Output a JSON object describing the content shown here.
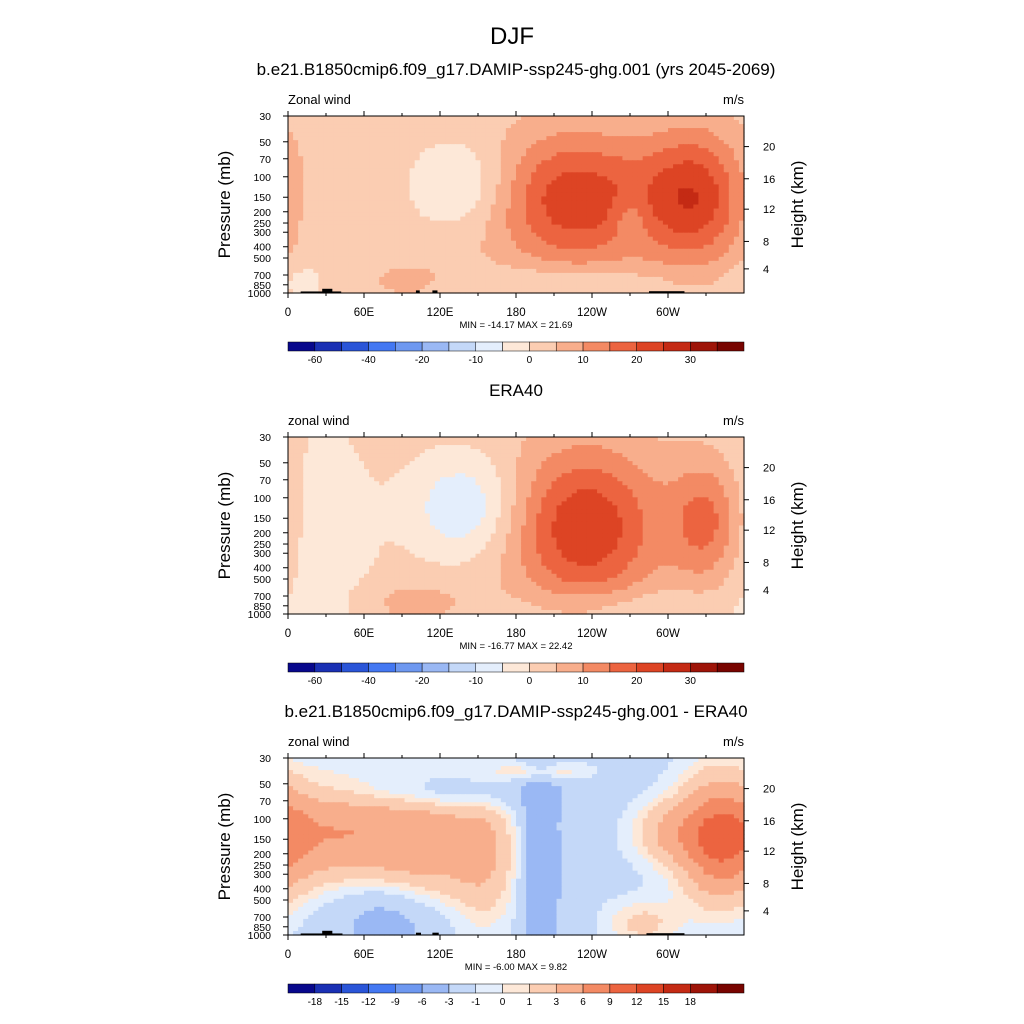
{
  "figure": {
    "title": "DJF",
    "colors": {
      "abs_scale": [
        "#08088c",
        "#1a30b4",
        "#2a55d8",
        "#4478f2",
        "#6e98f0",
        "#9ab8f4",
        "#c4d8f8",
        "#e4eefc",
        "#fde8d8",
        "#fbcdb2",
        "#f8ae8c",
        "#f38a64",
        "#ec6440",
        "#dd4424",
        "#c42a14",
        "#9e1408",
        "#780400"
      ],
      "diff_scale": [
        "#08088c",
        "#1a30b4",
        "#2a55d8",
        "#4478f2",
        "#6e98f0",
        "#9ab8f4",
        "#c4d8f8",
        "#e4eefc",
        "#fde8d8",
        "#fbcdb2",
        "#f8ae8c",
        "#f38a64",
        "#ec6440",
        "#dd4424",
        "#c42a14",
        "#9e1408",
        "#780400"
      ],
      "topography": "#000000"
    }
  },
  "chart_data": [
    {
      "type": "heatmap",
      "title": "b.e21.B1850cmip6.f09_g17.DAMIP-ssp245-ghg.001 (yrs 2045-2069)",
      "left_label": "Zonal wind",
      "right_label": "m/s",
      "ylabel": "Pressure (mb)",
      "ylabel_right": "Height (km)",
      "x_ticks": [
        "0",
        "60E",
        "120E",
        "180",
        "120W",
        "60W"
      ],
      "y_ticks": [
        "30",
        "50",
        "70",
        "100",
        "150",
        "200",
        "250",
        "300",
        "400",
        "500",
        "700",
        "850",
        "1000"
      ],
      "y_ticks_right": [
        "20",
        "16",
        "12",
        "8",
        "4"
      ],
      "stats": "MIN = -14.17  MAX =  21.69",
      "colorbar_labels": [
        "-60",
        "-40",
        "-20",
        "-10",
        "0",
        "10",
        "20",
        "30"
      ],
      "levels": [
        -70,
        -60,
        -50,
        -40,
        -30,
        -20,
        -15,
        -10,
        -5,
        0,
        5,
        10,
        15,
        20,
        25,
        30,
        35
      ],
      "xlim": [
        0,
        360
      ],
      "ylim": [
        1000,
        30
      ],
      "field": {
        "background": 2,
        "features": [
          {
            "lon": 140,
            "p": 120,
            "amp": -9,
            "w": 28,
            "h": 0.22
          },
          {
            "lon": 228,
            "p": 160,
            "amp": 21.7,
            "w": 48,
            "h": 0.34
          },
          {
            "lon": 322,
            "p": 150,
            "amp": 20,
            "w": 28,
            "h": 0.34
          },
          {
            "lon": 25,
            "p": 200,
            "amp": -3,
            "w": 12,
            "h": 0.25
          },
          {
            "lon": 100,
            "p": 800,
            "amp": 5,
            "w": 35,
            "h": 0.12
          },
          {
            "lon": 210,
            "p": 850,
            "amp": -5,
            "w": 70,
            "h": 0.1
          },
          {
            "lon": 10,
            "p": 800,
            "amp": -4,
            "w": 14,
            "h": 0.1
          },
          {
            "lon": 270,
            "p": 230,
            "amp": -6,
            "w": 10,
            "h": 0.12
          }
        ]
      },
      "topography": [
        {
          "lon0": 10,
          "lon1": 42,
          "top": 970
        },
        {
          "lon0": 27,
          "lon1": 35,
          "top": 920
        },
        {
          "lon0": 101,
          "lon1": 104,
          "top": 950
        },
        {
          "lon0": 114,
          "lon1": 118,
          "top": 950
        },
        {
          "lon0": 285,
          "lon1": 313,
          "top": 965
        }
      ]
    },
    {
      "type": "heatmap",
      "title": "ERA40",
      "left_label": "zonal wind",
      "right_label": "m/s",
      "ylabel": "Pressure (mb)",
      "ylabel_right": "Height (km)",
      "x_ticks": [
        "0",
        "60E",
        "120E",
        "180",
        "120W",
        "60W"
      ],
      "y_ticks": [
        "30",
        "50",
        "70",
        "100",
        "150",
        "200",
        "250",
        "300",
        "400",
        "500",
        "700",
        "850",
        "1000"
      ],
      "y_ticks_right": [
        "20",
        "16",
        "12",
        "8",
        "4"
      ],
      "stats": "MIN = -16.77  MAX =  22.42",
      "colorbar_labels": [
        "-60",
        "-40",
        "-20",
        "-10",
        "0",
        "10",
        "20",
        "30"
      ],
      "levels": [
        -70,
        -60,
        -50,
        -40,
        -30,
        -20,
        -15,
        -10,
        -5,
        0,
        5,
        10,
        15,
        20,
        25,
        30,
        35
      ],
      "xlim": [
        0,
        360
      ],
      "ylim": [
        1000,
        30
      ],
      "field": {
        "background": 2,
        "features": [
          {
            "lon": 140,
            "p": 120,
            "amp": -12,
            "w": 30,
            "h": 0.25
          },
          {
            "lon": 235,
            "p": 180,
            "amp": 22.4,
            "w": 42,
            "h": 0.4
          },
          {
            "lon": 330,
            "p": 160,
            "amp": 14,
            "w": 20,
            "h": 0.3
          },
          {
            "lon": 30,
            "p": 250,
            "amp": -5,
            "w": 28,
            "h": 0.6
          },
          {
            "lon": 100,
            "p": 800,
            "amp": 5,
            "w": 35,
            "h": 0.12
          },
          {
            "lon": 260,
            "p": 900,
            "amp": -5,
            "w": 60,
            "h": 0.1
          }
        ]
      },
      "topography": []
    },
    {
      "type": "heatmap",
      "title": "b.e21.B1850cmip6.f09_g17.DAMIP-ssp245-ghg.001 - ERA40",
      "left_label": "zonal wind",
      "right_label": "m/s",
      "ylabel": "Pressure (mb)",
      "ylabel_right": "Height (km)",
      "x_ticks": [
        "0",
        "60E",
        "120E",
        "180",
        "120W",
        "60W"
      ],
      "y_ticks": [
        "30",
        "50",
        "70",
        "100",
        "150",
        "200",
        "250",
        "300",
        "400",
        "500",
        "700",
        "850",
        "1000"
      ],
      "y_ticks_right": [
        "20",
        "16",
        "12",
        "8",
        "4"
      ],
      "stats": "MIN =  -6.00  MAX =   9.82",
      "colorbar_labels": [
        "-18",
        "-15",
        "-12",
        "-9",
        "-6",
        "-3",
        "-1",
        "0",
        "1",
        "3",
        "6",
        "9",
        "12",
        "15",
        "18"
      ],
      "levels": [
        -21,
        -18,
        -15,
        -12,
        -9,
        -6,
        -3,
        -1,
        0,
        1,
        3,
        6,
        9,
        12,
        15,
        18,
        21
      ],
      "xlim": [
        0,
        360
      ],
      "ylim": [
        1000,
        30
      ],
      "field": {
        "background": -1.5,
        "features": [
          {
            "lon": 40,
            "p": 130,
            "amp": 7,
            "w": 40,
            "h": 0.25
          },
          {
            "lon": 110,
            "p": 160,
            "amp": 5.5,
            "w": 30,
            "h": 0.3
          },
          {
            "lon": 155,
            "p": 200,
            "amp": 4,
            "w": 18,
            "h": 0.35
          },
          {
            "lon": 340,
            "p": 150,
            "amp": 9.8,
            "w": 22,
            "h": 0.3
          },
          {
            "lon": 300,
            "p": 130,
            "amp": 4,
            "w": 20,
            "h": 0.15
          },
          {
            "lon": 200,
            "p": 250,
            "amp": -4.5,
            "w": 10,
            "h": 0.5
          },
          {
            "lon": 80,
            "p": 700,
            "amp": -3,
            "w": 30,
            "h": 0.2
          },
          {
            "lon": 200,
            "p": 40,
            "amp": 3,
            "w": 25,
            "h": 0.05
          },
          {
            "lon": 120,
            "p": 60,
            "amp": -3,
            "w": 60,
            "h": 0.1
          },
          {
            "lon": 280,
            "p": 800,
            "amp": 3,
            "w": 20,
            "h": 0.12
          }
        ]
      },
      "topography": [
        {
          "lon0": 10,
          "lon1": 43,
          "top": 970
        },
        {
          "lon0": 27,
          "lon1": 35,
          "top": 920
        },
        {
          "lon0": 101,
          "lon1": 105,
          "top": 955
        },
        {
          "lon0": 114,
          "lon1": 119,
          "top": 955
        },
        {
          "lon0": 283,
          "lon1": 313,
          "top": 965
        }
      ]
    }
  ]
}
